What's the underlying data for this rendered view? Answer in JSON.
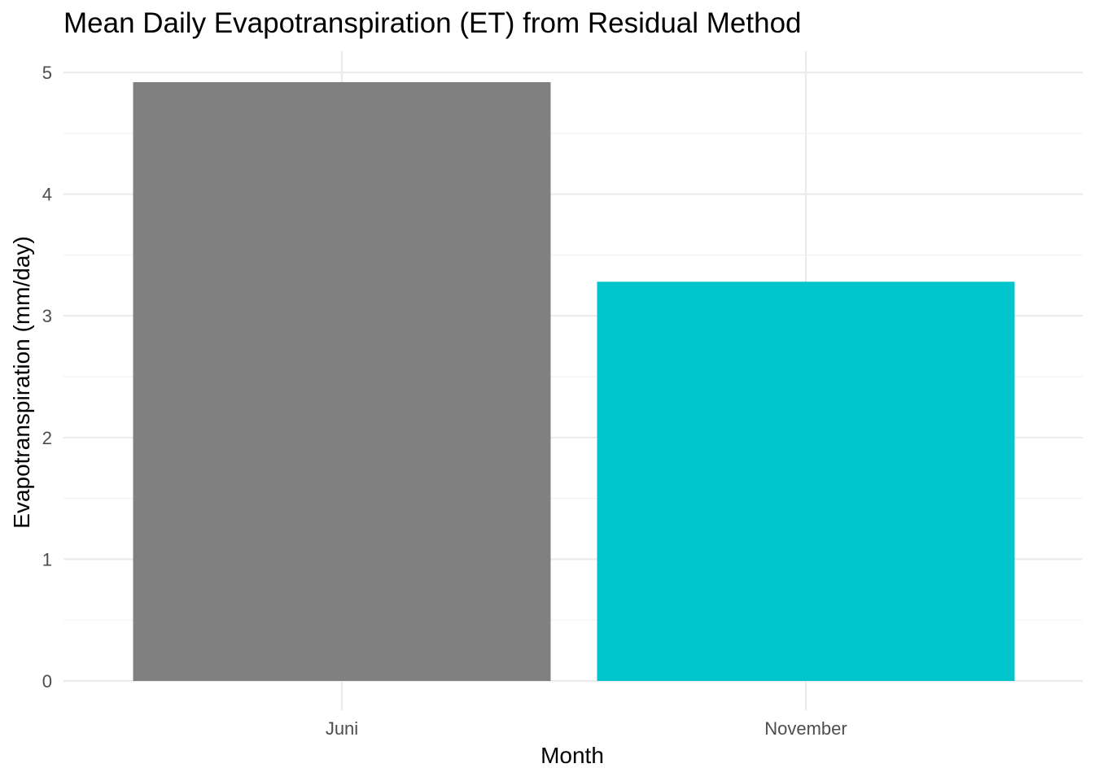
{
  "chart_data": {
    "type": "bar",
    "title": "Mean Daily Evapotranspiration (ET) from Residual Method",
    "xlabel": "Month",
    "ylabel": "Evapotranspiration (mm/day)",
    "categories": [
      "Juni",
      "November"
    ],
    "values": [
      4.92,
      3.28
    ],
    "colors": [
      "#808080",
      "#00C5CD"
    ],
    "ylim": [
      0,
      5.17
    ],
    "yticks": [
      0,
      1,
      2,
      3,
      4,
      5
    ],
    "grid": true,
    "legend": "none"
  }
}
